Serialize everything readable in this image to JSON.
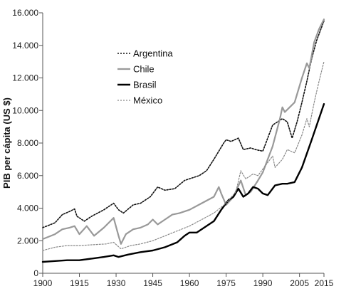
{
  "chart_data": {
    "type": "line",
    "ylabel": "PIB per cápita (US $)",
    "xlabel": "",
    "xlim": [
      1900,
      2015
    ],
    "ylim": [
      0,
      16000
    ],
    "x_ticks": [
      1900,
      1915,
      1930,
      1945,
      1960,
      1975,
      1990,
      2005,
      2015
    ],
    "x_tick_labels": [
      "1900",
      "1915",
      "1930",
      "1945",
      "1960",
      "1975",
      "1990",
      "2005",
      "2015"
    ],
    "y_ticks": [
      0,
      2000,
      4000,
      6000,
      8000,
      10000,
      12000,
      14000,
      16000
    ],
    "y_tick_labels": [
      "0",
      "2.000",
      "4.000",
      "6.000",
      "8.000",
      "10.000",
      "12.000",
      "14.000",
      "16.000"
    ],
    "grid": false,
    "legend_position": "top-left",
    "series": [
      {
        "name": "Argentina",
        "color": "#111111",
        "style": "dotted",
        "points": [
          [
            1900,
            2800
          ],
          [
            1905,
            3100
          ],
          [
            1908,
            3600
          ],
          [
            1911,
            3800
          ],
          [
            1913,
            3950
          ],
          [
            1914,
            3500
          ],
          [
            1917,
            3200
          ],
          [
            1920,
            3500
          ],
          [
            1925,
            3900
          ],
          [
            1929,
            4300
          ],
          [
            1931,
            3900
          ],
          [
            1933,
            3700
          ],
          [
            1937,
            4200
          ],
          [
            1940,
            4300
          ],
          [
            1944,
            4700
          ],
          [
            1947,
            5300
          ],
          [
            1950,
            5100
          ],
          [
            1954,
            5200
          ],
          [
            1958,
            5700
          ],
          [
            1960,
            5800
          ],
          [
            1964,
            6000
          ],
          [
            1967,
            6300
          ],
          [
            1970,
            7000
          ],
          [
            1974,
            8000
          ],
          [
            1975,
            8200
          ],
          [
            1977,
            8100
          ],
          [
            1980,
            8300
          ],
          [
            1982,
            7600
          ],
          [
            1985,
            7700
          ],
          [
            1987,
            7600
          ],
          [
            1990,
            7500
          ],
          [
            1992,
            8300
          ],
          [
            1994,
            9100
          ],
          [
            1998,
            9500
          ],
          [
            2000,
            9300
          ],
          [
            2002,
            8300
          ],
          [
            2004,
            9300
          ],
          [
            2006,
            10500
          ],
          [
            2008,
            11800
          ],
          [
            2010,
            13200
          ],
          [
            2012,
            14300
          ],
          [
            2015,
            15500
          ]
        ]
      },
      {
        "name": "Chile",
        "color": "#999999",
        "style": "solid",
        "points": [
          [
            1900,
            2100
          ],
          [
            1905,
            2400
          ],
          [
            1908,
            2700
          ],
          [
            1911,
            2800
          ],
          [
            1913,
            2900
          ],
          [
            1915,
            2400
          ],
          [
            1918,
            2900
          ],
          [
            1921,
            2300
          ],
          [
            1925,
            2800
          ],
          [
            1929,
            3400
          ],
          [
            1931,
            2300
          ],
          [
            1932,
            1800
          ],
          [
            1934,
            2400
          ],
          [
            1937,
            2700
          ],
          [
            1940,
            2800
          ],
          [
            1943,
            3000
          ],
          [
            1945,
            3300
          ],
          [
            1947,
            3000
          ],
          [
            1950,
            3300
          ],
          [
            1953,
            3600
          ],
          [
            1956,
            3700
          ],
          [
            1960,
            3900
          ],
          [
            1965,
            4300
          ],
          [
            1970,
            4700
          ],
          [
            1972,
            5300
          ],
          [
            1973,
            4900
          ],
          [
            1975,
            4200
          ],
          [
            1978,
            4700
          ],
          [
            1981,
            5700
          ],
          [
            1983,
            4800
          ],
          [
            1985,
            5000
          ],
          [
            1988,
            5700
          ],
          [
            1990,
            6200
          ],
          [
            1994,
            7800
          ],
          [
            1997,
            9500
          ],
          [
            1998,
            10200
          ],
          [
            1999,
            9900
          ],
          [
            2003,
            10500
          ],
          [
            2006,
            12000
          ],
          [
            2008,
            12900
          ],
          [
            2009,
            12600
          ],
          [
            2011,
            14200
          ],
          [
            2013,
            15000
          ],
          [
            2015,
            15600
          ]
        ]
      },
      {
        "name": "Brasil",
        "color": "#000000",
        "style": "solid-thick",
        "points": [
          [
            1900,
            700
          ],
          [
            1905,
            750
          ],
          [
            1910,
            800
          ],
          [
            1915,
            800
          ],
          [
            1920,
            900
          ],
          [
            1925,
            1000
          ],
          [
            1929,
            1100
          ],
          [
            1931,
            1000
          ],
          [
            1935,
            1150
          ],
          [
            1940,
            1300
          ],
          [
            1945,
            1400
          ],
          [
            1950,
            1600
          ],
          [
            1955,
            1900
          ],
          [
            1958,
            2300
          ],
          [
            1960,
            2500
          ],
          [
            1963,
            2500
          ],
          [
            1966,
            2800
          ],
          [
            1970,
            3200
          ],
          [
            1973,
            3900
          ],
          [
            1976,
            4500
          ],
          [
            1978,
            4700
          ],
          [
            1980,
            5200
          ],
          [
            1982,
            4700
          ],
          [
            1984,
            4900
          ],
          [
            1986,
            5300
          ],
          [
            1988,
            5200
          ],
          [
            1990,
            4900
          ],
          [
            1992,
            4800
          ],
          [
            1995,
            5400
          ],
          [
            1998,
            5500
          ],
          [
            2000,
            5500
          ],
          [
            2003,
            5600
          ],
          [
            2006,
            6500
          ],
          [
            2010,
            8200
          ],
          [
            2015,
            10400
          ]
        ]
      },
      {
        "name": "México",
        "color": "#888888",
        "style": "dotted-light",
        "points": [
          [
            1900,
            1400
          ],
          [
            1905,
            1600
          ],
          [
            1910,
            1700
          ],
          [
            1915,
            1700
          ],
          [
            1920,
            1750
          ],
          [
            1926,
            1800
          ],
          [
            1929,
            1900
          ],
          [
            1932,
            1500
          ],
          [
            1936,
            1700
          ],
          [
            1940,
            1800
          ],
          [
            1945,
            2000
          ],
          [
            1950,
            2300
          ],
          [
            1955,
            2600
          ],
          [
            1960,
            2900
          ],
          [
            1965,
            3300
          ],
          [
            1970,
            3700
          ],
          [
            1975,
            4300
          ],
          [
            1979,
            5000
          ],
          [
            1981,
            6300
          ],
          [
            1983,
            5800
          ],
          [
            1986,
            6100
          ],
          [
            1988,
            6000
          ],
          [
            1990,
            6400
          ],
          [
            1994,
            7200
          ],
          [
            1995,
            6500
          ],
          [
            1998,
            7000
          ],
          [
            2000,
            7600
          ],
          [
            2003,
            7400
          ],
          [
            2006,
            8500
          ],
          [
            2008,
            9500
          ],
          [
            2009,
            9000
          ],
          [
            2011,
            10500
          ],
          [
            2013,
            11800
          ],
          [
            2015,
            13000
          ]
        ]
      }
    ]
  }
}
